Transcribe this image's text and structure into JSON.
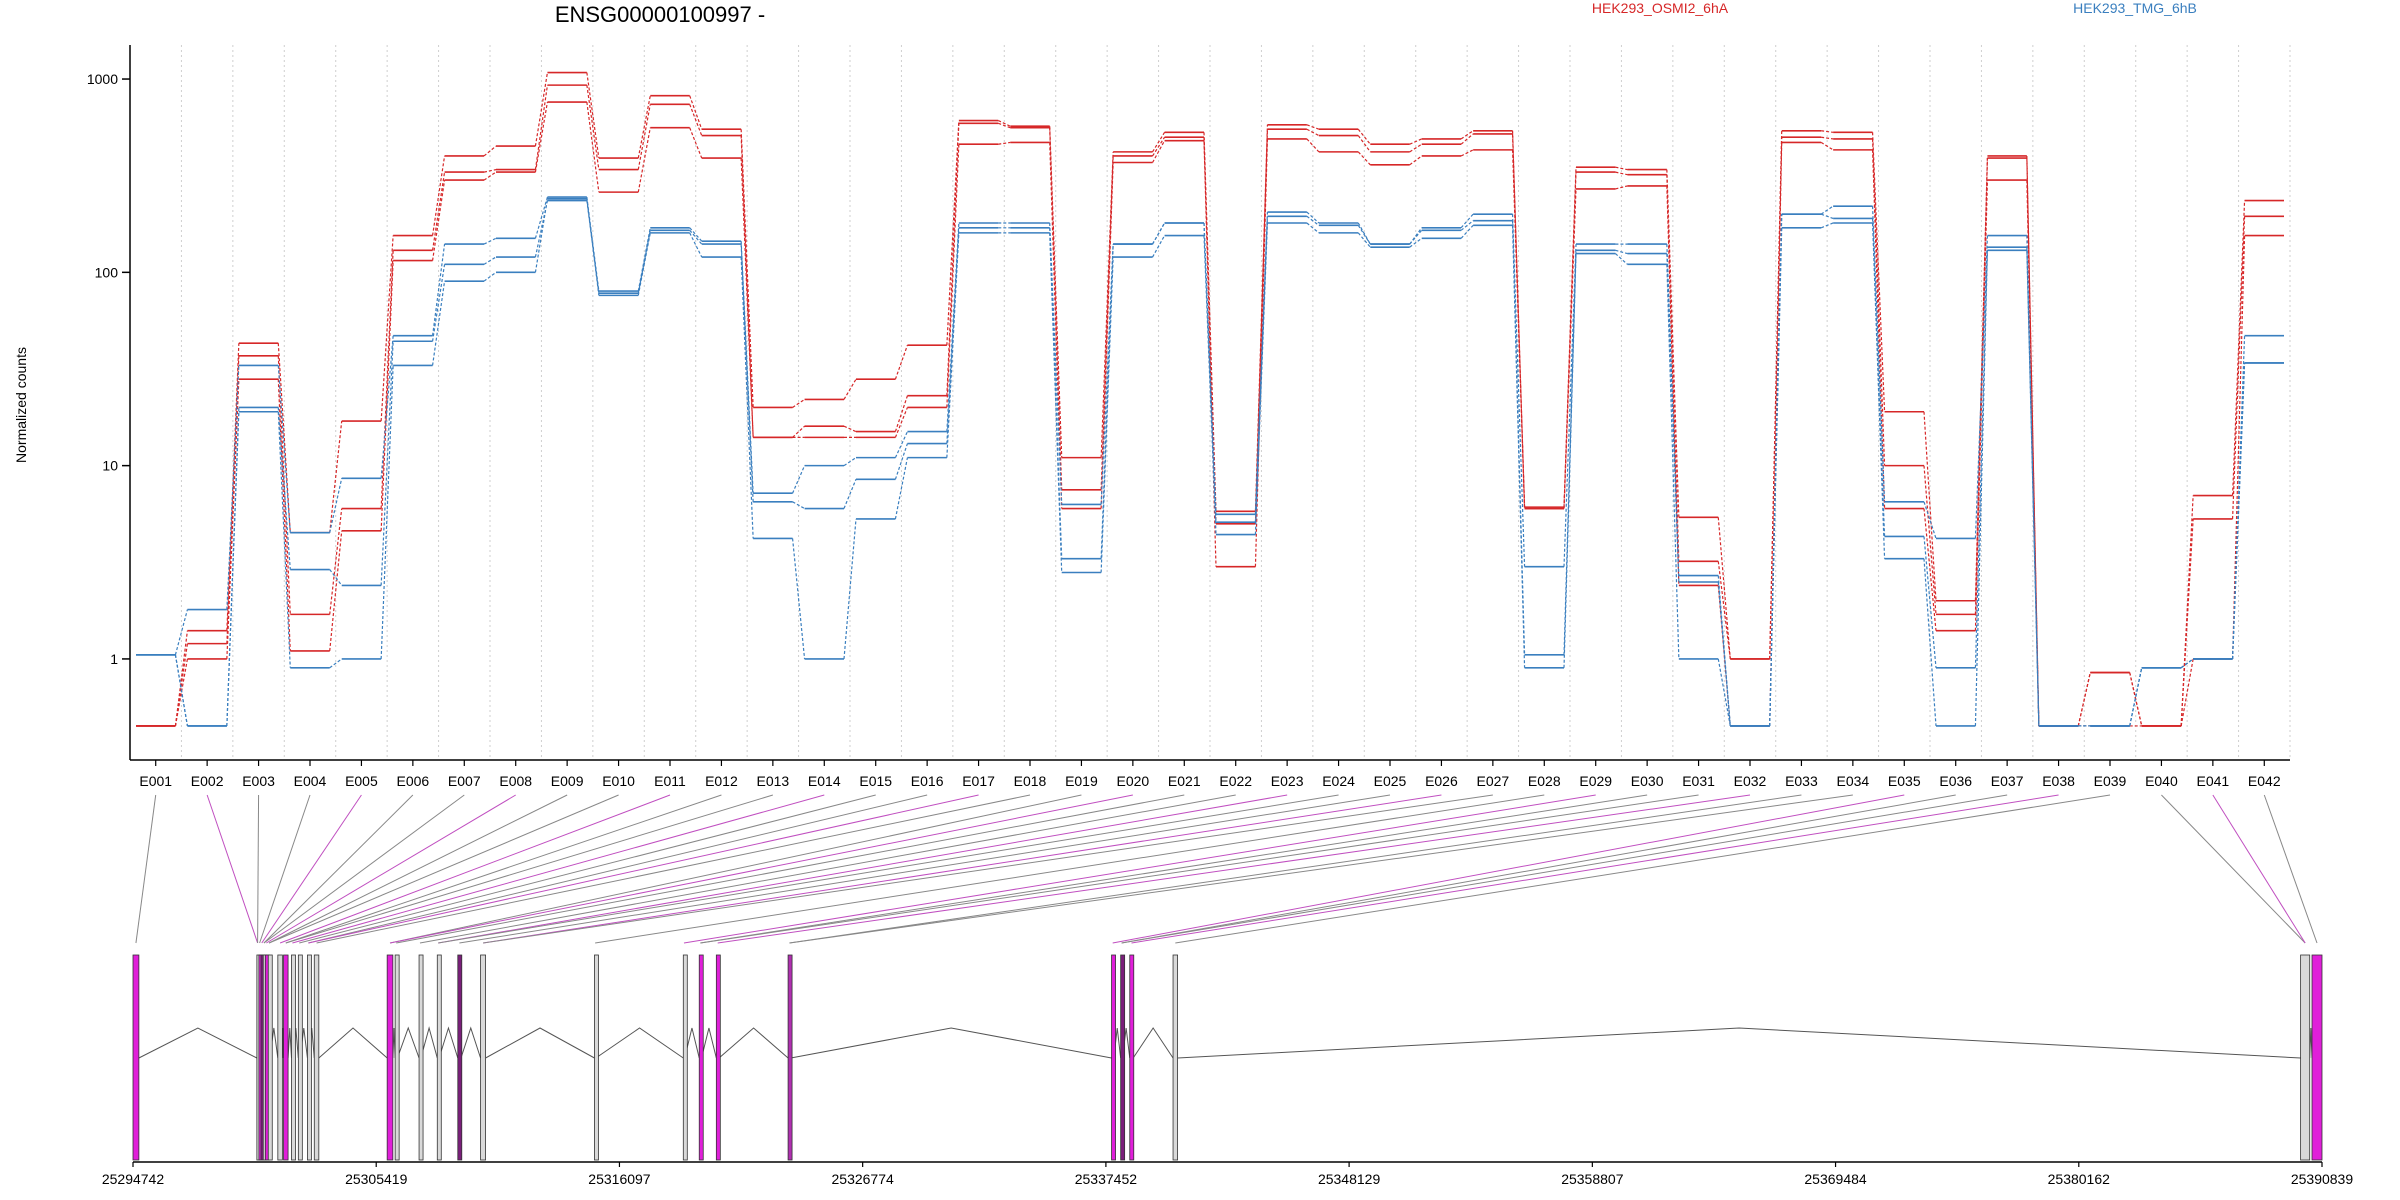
{
  "chart_data": {
    "type": "line",
    "title": "ENSG00000100997 -",
    "ylabel": "Normalized counts",
    "yscale": "log",
    "ylim": [
      0.3,
      1500
    ],
    "yticks": [
      "1",
      "10",
      "100",
      "1000"
    ],
    "legend": [
      {
        "name": "HEK293_OSMI2_6hA",
        "color": "#d62728"
      },
      {
        "name": "HEK293_TMG_6hB",
        "color": "#3a7fbf"
      }
    ],
    "categories": [
      "E001",
      "E002",
      "E003",
      "E004",
      "E005",
      "E006",
      "E007",
      "E008",
      "E009",
      "E010",
      "E011",
      "E012",
      "E013",
      "E014",
      "E015",
      "E016",
      "E017",
      "E018",
      "E019",
      "E020",
      "E021",
      "E022",
      "E023",
      "E024",
      "E025",
      "E026",
      "E027",
      "E028",
      "E029",
      "E030",
      "E031",
      "E032",
      "E033",
      "E034",
      "E035",
      "E036",
      "E037",
      "E038",
      "E039",
      "E040",
      "E041",
      "E042"
    ],
    "series": [
      {
        "group": "HEK293_OSMI2_6hA",
        "color": "#d62728",
        "values": [
          0.45,
          1.0,
          28,
          1.1,
          4.6,
          115,
          300,
          330,
          760,
          260,
          560,
          390,
          14,
          14,
          14,
          20,
          460,
          470,
          6.0,
          370,
          480,
          3.0,
          490,
          420,
          360,
          400,
          430,
          6.0,
          270,
          280,
          2.4,
          0.45,
          470,
          430,
          6.0,
          1.4,
          300,
          0.45,
          0.45,
          0.45,
          1.0,
          155
        ]
      },
      {
        "group": "HEK293_OSMI2_6hA",
        "color": "#d62728",
        "values": [
          0.45,
          1.2,
          37,
          1.7,
          6.0,
          130,
          330,
          340,
          930,
          340,
          740,
          510,
          14,
          16,
          15,
          23,
          590,
          560,
          7.5,
          400,
          500,
          5.0,
          550,
          510,
          420,
          460,
          520,
          6.0,
          330,
          320,
          3.2,
          1.0,
          500,
          490,
          10,
          1.7,
          390,
          0.45,
          0.85,
          0.45,
          5.3,
          195
        ]
      },
      {
        "group": "HEK293_OSMI2_6hA",
        "color": "#d62728",
        "values": [
          0.45,
          1.4,
          43,
          4.5,
          17,
          155,
          400,
          450,
          1080,
          390,
          820,
          550,
          20,
          22,
          28,
          42,
          610,
          570,
          11,
          420,
          530,
          5.8,
          580,
          550,
          460,
          490,
          540,
          6.1,
          350,
          340,
          5.4,
          1.0,
          540,
          530,
          19,
          2.0,
          400,
          0.45,
          0.85,
          0.45,
          7.0,
          235
        ]
      },
      {
        "group": "HEK293_TMG_6hB",
        "color": "#3a7fbf",
        "values": [
          1.05,
          0.45,
          19,
          0.9,
          1.0,
          33,
          90,
          100,
          240,
          76,
          160,
          120,
          4.2,
          1.0,
          5.3,
          11,
          160,
          160,
          2.8,
          120,
          155,
          4.4,
          180,
          160,
          135,
          150,
          175,
          0.9,
          125,
          110,
          1.0,
          0.45,
          170,
          180,
          3.3,
          0.45,
          130,
          0.45,
          0.45,
          0.9,
          1.0,
          34
        ]
      },
      {
        "group": "HEK293_TMG_6hB",
        "color": "#3a7fbf",
        "values": [
          1.05,
          0.45,
          20,
          2.9,
          2.4,
          44,
          110,
          120,
          235,
          78,
          165,
          140,
          6.5,
          6.0,
          8.5,
          13,
          170,
          170,
          3.3,
          140,
          180,
          5.1,
          195,
          175,
          140,
          165,
          185,
          1.05,
          130,
          125,
          2.5,
          0.45,
          200,
          190,
          4.3,
          0.9,
          135,
          0.45,
          0.45,
          0.9,
          1.0,
          34
        ]
      },
      {
        "group": "HEK293_TMG_6hB",
        "color": "#3a7fbf",
        "values": [
          1.05,
          1.8,
          33,
          4.5,
          8.6,
          47,
          140,
          150,
          245,
          80,
          170,
          145,
          7.2,
          10,
          11,
          15,
          180,
          180,
          6.3,
          140,
          180,
          5.6,
          205,
          180,
          140,
          170,
          200,
          3.0,
          140,
          140,
          2.7,
          0.45,
          200,
          220,
          6.5,
          4.2,
          155,
          0.45,
          0.45,
          0.9,
          1.0,
          47
        ]
      }
    ],
    "coordinate_axis": {
      "ticks": [
        "25294742",
        "25305419",
        "25316097",
        "25326774",
        "25337452",
        "25348129",
        "25358807",
        "25369484",
        "25380162",
        "25390839"
      ],
      "range": [
        25294742,
        25390839
      ]
    },
    "exons": [
      {
        "start": 25294742,
        "end": 25295000,
        "color": "#e01fd9"
      },
      {
        "start": 25300180,
        "end": 25300245,
        "color": "#d9d9d9"
      },
      {
        "start": 25300270,
        "end": 25300330,
        "color": "#e01fd9"
      },
      {
        "start": 25300360,
        "end": 25300430,
        "color": "#7a1f7a"
      },
      {
        "start": 25300460,
        "end": 25300520,
        "color": "#d9d9d9"
      },
      {
        "start": 25300550,
        "end": 25300640,
        "color": "#e01fd9"
      },
      {
        "start": 25300680,
        "end": 25300750,
        "color": "#d9d9d9"
      },
      {
        "start": 25301100,
        "end": 25301300,
        "color": "#d9d9d9"
      },
      {
        "start": 25301350,
        "end": 25301550,
        "color": "#e01fd9"
      },
      {
        "start": 25301700,
        "end": 25301780,
        "color": "#d9d9d9"
      },
      {
        "start": 25302000,
        "end": 25302080,
        "color": "#d9d9d9"
      },
      {
        "start": 25302400,
        "end": 25302480,
        "color": "#d9d9d9"
      },
      {
        "start": 25302700,
        "end": 25302900,
        "color": "#d9d9d9"
      },
      {
        "start": 25305900,
        "end": 25306150,
        "color": "#e01fd9"
      },
      {
        "start": 25306250,
        "end": 25306350,
        "color": "#d9d9d9"
      },
      {
        "start": 25307300,
        "end": 25307380,
        "color": "#d9d9d9"
      },
      {
        "start": 25308100,
        "end": 25308180,
        "color": "#d9d9d9"
      },
      {
        "start": 25309000,
        "end": 25309140,
        "color": "#7a1f7a"
      },
      {
        "start": 25310000,
        "end": 25310220,
        "color": "#d9d9d9"
      },
      {
        "start": 25315000,
        "end": 25315060,
        "color": "#d9d9d9"
      },
      {
        "start": 25318900,
        "end": 25318960,
        "color": "#d9d9d9"
      },
      {
        "start": 25319600,
        "end": 25319700,
        "color": "#e01fd9"
      },
      {
        "start": 25320350,
        "end": 25320470,
        "color": "#e01fd9"
      },
      {
        "start": 25323500,
        "end": 25323620,
        "color": "#b02fb0"
      },
      {
        "start": 25337700,
        "end": 25337800,
        "color": "#e01fd9"
      },
      {
        "start": 25338100,
        "end": 25338180,
        "color": "#7a1f7a"
      },
      {
        "start": 25338500,
        "end": 25338650,
        "color": "#e01fd9"
      },
      {
        "start": 25340400,
        "end": 25340600,
        "color": "#d9d9d9"
      },
      {
        "start": 25389900,
        "end": 25390300,
        "color": "#d9d9d9"
      },
      {
        "start": 25390400,
        "end": 25390839,
        "color": "#e01fd9"
      }
    ]
  }
}
